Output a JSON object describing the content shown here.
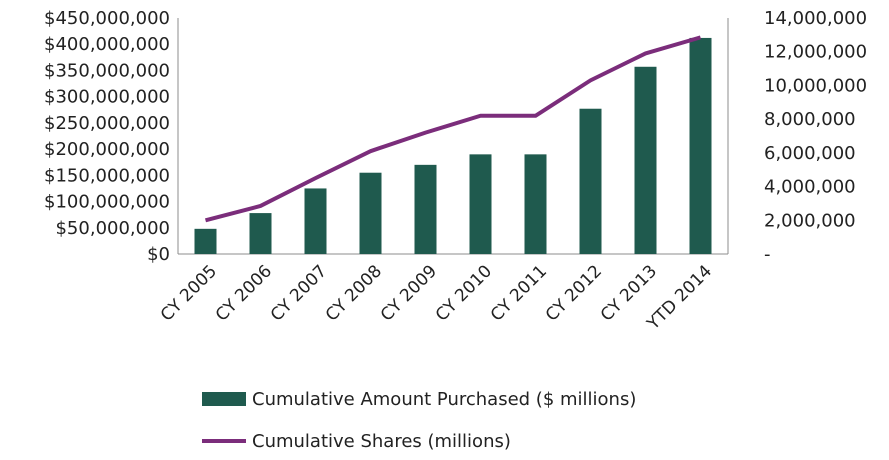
{
  "chart_data": {
    "type": "bar",
    "title": "",
    "xlabel": "",
    "ylabel": "",
    "categories": [
      "CY 2005",
      "CY 2006",
      "CY 2007",
      "CY 2008",
      "CY 2009",
      "CY 2010",
      "CY 2011",
      "CY 2012",
      "CY 2013",
      "YTD 2014"
    ],
    "series": [
      {
        "name": "Cumulative Amount Purchased ($ millions)",
        "type": "bar",
        "axis": "left",
        "color": "#1f5a4e",
        "values": [
          48000000,
          78000000,
          125000000,
          155000000,
          170000000,
          190000000,
          190000000,
          277000000,
          357000000,
          412000000
        ]
      },
      {
        "name": "Cumulative Shares (millions)",
        "type": "line",
        "axis": "right",
        "color": "#7b2d7b",
        "values": [
          2000000,
          2850000,
          4500000,
          6100000,
          7200000,
          8200000,
          8200000,
          10300000,
          11900000,
          12850000
        ]
      }
    ],
    "y_left": {
      "lim": [
        0,
        450000000
      ],
      "ticks": [
        0,
        50000000,
        100000000,
        150000000,
        200000000,
        250000000,
        300000000,
        350000000,
        400000000,
        450000000
      ],
      "tick_labels": [
        "$0",
        "$50,000,000",
        "$100,000,000",
        "$150,000,000",
        "$200,000,000",
        "$250,000,000",
        "$300,000,000",
        "$350,000,000",
        "$400,000,000",
        "$450,000,000"
      ]
    },
    "y_right": {
      "lim": [
        0,
        14000000
      ],
      "ticks": [
        0,
        2000000,
        4000000,
        6000000,
        8000000,
        10000000,
        12000000,
        14000000
      ],
      "tick_labels": [
        "-",
        "2,000,000",
        "4,000,000",
        "6,000,000",
        "8,000,000",
        "10,000,000",
        "12,000,000",
        "14,000,000"
      ]
    },
    "grid": false,
    "legend_position": "bottom"
  }
}
